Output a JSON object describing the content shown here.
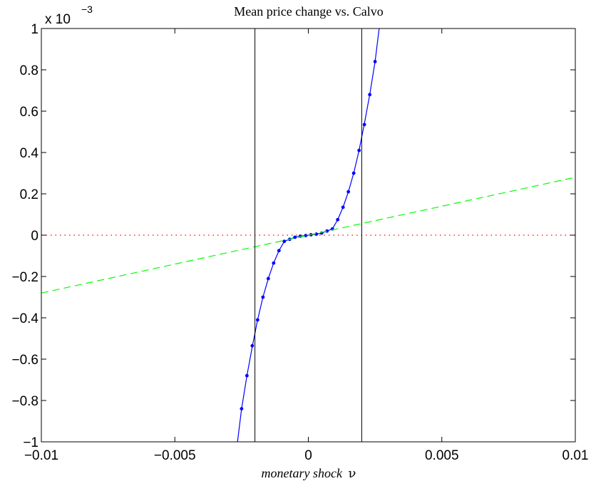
{
  "chart_data": {
    "type": "line",
    "title": "Mean price change vs. Calvo",
    "xlabel": "monetary shock",
    "xlabel_symbol": "ν",
    "ylabel": "",
    "y_multiplier": {
      "base": "x 10",
      "exponent": "−3"
    },
    "xlim": [
      -0.01,
      0.01
    ],
    "ylim": [
      -1,
      1
    ],
    "y_scale_factor": 0.001,
    "x_ticks": [
      -0.01,
      -0.005,
      0,
      0.005,
      0.01
    ],
    "x_tick_labels": [
      "−0.01",
      "−0.005",
      "0",
      "0.005",
      "0.01"
    ],
    "y_ticks": [
      -1,
      -0.8,
      -0.6,
      -0.4,
      -0.2,
      0,
      0.2,
      0.4,
      0.6,
      0.8,
      1
    ],
    "y_tick_labels": [
      "−1",
      "−0.8",
      "−0.6",
      "−0.4",
      "−0.2",
      "0",
      "0.2",
      "0.4",
      "0.6",
      "0.8",
      "1"
    ],
    "grid": false,
    "series": [
      {
        "style": "solid-with-dots",
        "color": "#0000ff",
        "x": [
          -0.0027,
          -0.0025,
          -0.0023,
          -0.0021,
          -0.0019,
          -0.0017,
          -0.0015,
          -0.0013,
          -0.0011,
          -0.0009,
          -0.0007,
          -0.0005,
          -0.0003,
          -0.0001,
          0.0001,
          0.0003,
          0.0005,
          0.0007,
          0.0009,
          0.0011,
          0.0013,
          0.0015,
          0.0017,
          0.0019,
          0.0021,
          0.0023,
          0.0025,
          0.0027
        ],
        "y": [
          -1.05,
          -0.84,
          -0.68,
          -0.54,
          -0.41,
          -0.3,
          -0.21,
          -0.135,
          -0.075,
          -0.03,
          -0.02,
          -0.01,
          -0.005,
          -0.002,
          0.002,
          0.005,
          0.01,
          0.02,
          0.03,
          0.075,
          0.135,
          0.21,
          0.3,
          0.41,
          0.54,
          0.68,
          0.84,
          1.05
        ],
        "marker_x": [
          -0.0025,
          -0.0023,
          -0.0021,
          -0.0019,
          -0.0017,
          -0.0015,
          -0.0013,
          -0.0011,
          -0.0009,
          -0.0007,
          -0.0005,
          -0.0003,
          -0.0001,
          0.0001,
          0.0003,
          0.0005,
          0.0007,
          0.0009,
          0.0011,
          0.0013,
          0.0015,
          0.0017,
          0.0019,
          0.0021,
          0.0023,
          0.0025
        ],
        "marker_y": [
          -0.84,
          -0.68,
          -0.535,
          -0.41,
          -0.3,
          -0.21,
          -0.135,
          -0.075,
          -0.03,
          -0.02,
          -0.01,
          -0.005,
          -0.002,
          0.002,
          0.005,
          0.01,
          0.02,
          0.03,
          0.075,
          0.135,
          0.21,
          0.3,
          0.41,
          0.535,
          0.68,
          0.84
        ]
      },
      {
        "style": "dashed",
        "color": "#00ff00",
        "x": [
          -0.01,
          0.01
        ],
        "y": [
          -0.28,
          0.28
        ]
      },
      {
        "style": "dotted",
        "color": "#ff0000",
        "x": [
          -0.01,
          0.01
        ],
        "y": [
          0,
          0
        ]
      }
    ],
    "vertical_lines": [
      {
        "x": -0.002,
        "color": "#000000"
      },
      {
        "x": 0.002,
        "color": "#000000"
      }
    ]
  }
}
